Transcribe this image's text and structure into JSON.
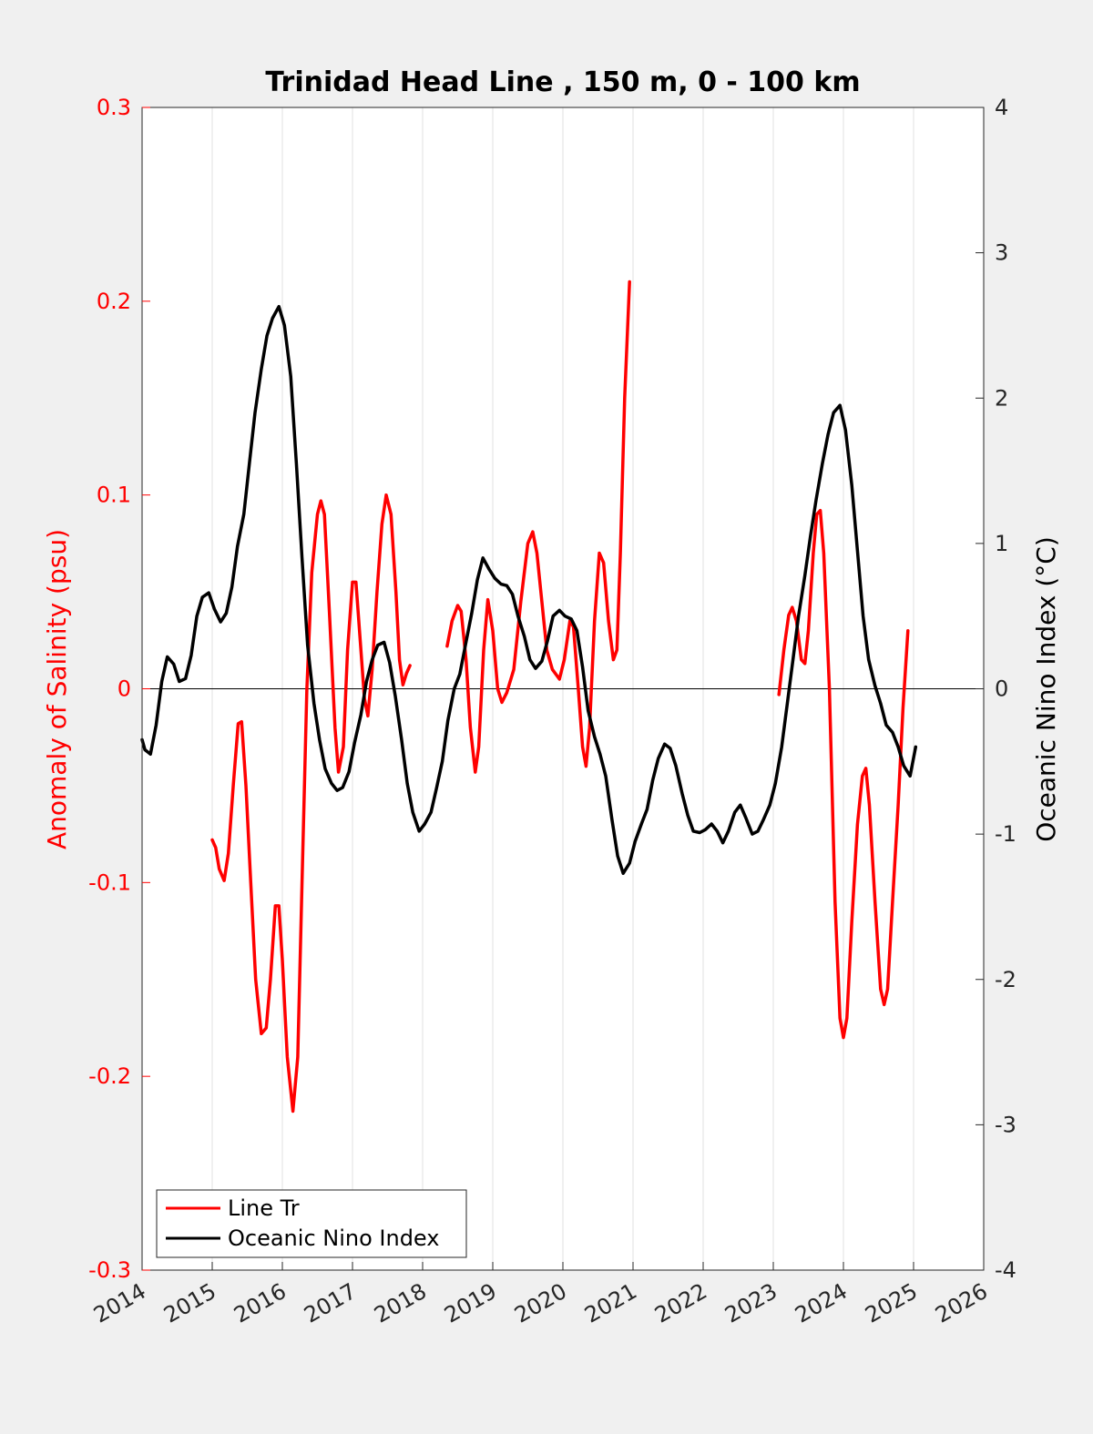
{
  "chart_data": {
    "type": "line",
    "title": "Trinidad Head Line , 150 m, 0 - 100 km",
    "xlabel": "",
    "ylabel_left": "Anomaly of Salinity (psu)",
    "ylabel_right": "Oceanic Nino Index (°C)",
    "xlim": [
      2014,
      2026
    ],
    "ylim_left": [
      -0.3,
      0.3
    ],
    "ylim_right": [
      -4,
      4
    ],
    "x_ticks": [
      "2014",
      "2015",
      "2016",
      "2017",
      "2018",
      "2019",
      "2020",
      "2021",
      "2022",
      "2023",
      "2024",
      "2025",
      "2026"
    ],
    "y_left_ticks": [
      "-0.3",
      "-0.2",
      "-0.1",
      "0",
      "0.1",
      "0.2",
      "0.3"
    ],
    "y_right_ticks": [
      "-4",
      "-3",
      "-2",
      "-1",
      "0",
      "1",
      "2",
      "3",
      "4"
    ],
    "grid": "vertical",
    "legend_position": "bottom-left",
    "zero_line": 0,
    "colors": {
      "left_axis": "#ff0000",
      "series_1": "#ff0000",
      "series_2": "#000000",
      "background": "#f0f0f0",
      "plot_area": "#ffffff",
      "grid": "#e2e2e2"
    },
    "series": [
      {
        "name": "Line Tr",
        "axis": "left",
        "segments": [
          [
            [
              2015.0,
              -0.078
            ],
            [
              2015.05,
              -0.082
            ],
            [
              2015.1,
              -0.093
            ],
            [
              2015.17,
              -0.099
            ],
            [
              2015.23,
              -0.085
            ],
            [
              2015.3,
              -0.05
            ],
            [
              2015.37,
              -0.018
            ],
            [
              2015.42,
              -0.017
            ],
            [
              2015.48,
              -0.05
            ],
            [
              2015.55,
              -0.1
            ],
            [
              2015.62,
              -0.15
            ],
            [
              2015.7,
              -0.178
            ],
            [
              2015.77,
              -0.175
            ],
            [
              2015.83,
              -0.15
            ],
            [
              2015.9,
              -0.112
            ],
            [
              2015.95,
              -0.112
            ],
            [
              2016.0,
              -0.14
            ],
            [
              2016.07,
              -0.19
            ],
            [
              2016.15,
              -0.218
            ],
            [
              2016.22,
              -0.19
            ],
            [
              2016.28,
              -0.1
            ],
            [
              2016.35,
              0.0
            ],
            [
              2016.42,
              0.06
            ],
            [
              2016.5,
              0.09
            ],
            [
              2016.55,
              0.097
            ],
            [
              2016.6,
              0.09
            ],
            [
              2016.67,
              0.04
            ],
            [
              2016.75,
              -0.02
            ],
            [
              2016.8,
              -0.043
            ],
            [
              2016.87,
              -0.03
            ],
            [
              2016.93,
              0.02
            ],
            [
              2017.0,
              0.055
            ],
            [
              2017.05,
              0.055
            ],
            [
              2017.1,
              0.03
            ],
            [
              2017.17,
              -0.005
            ],
            [
              2017.22,
              -0.014
            ],
            [
              2017.28,
              0.01
            ],
            [
              2017.35,
              0.05
            ],
            [
              2017.42,
              0.085
            ],
            [
              2017.48,
              0.1
            ],
            [
              2017.55,
              0.09
            ],
            [
              2017.62,
              0.05
            ],
            [
              2017.67,
              0.015
            ],
            [
              2017.72,
              0.002
            ],
            [
              2017.77,
              0.008
            ],
            [
              2017.82,
              0.012
            ]
          ],
          [
            [
              2018.35,
              0.022
            ],
            [
              2018.42,
              0.035
            ],
            [
              2018.5,
              0.043
            ],
            [
              2018.55,
              0.04
            ],
            [
              2018.62,
              0.015
            ],
            [
              2018.68,
              -0.02
            ],
            [
              2018.75,
              -0.043
            ],
            [
              2018.8,
              -0.03
            ],
            [
              2018.87,
              0.02
            ],
            [
              2018.93,
              0.046
            ],
            [
              2019.0,
              0.03
            ],
            [
              2019.07,
              0.0
            ],
            [
              2019.13,
              -0.007
            ],
            [
              2019.2,
              -0.002
            ],
            [
              2019.3,
              0.01
            ],
            [
              2019.4,
              0.045
            ],
            [
              2019.5,
              0.075
            ],
            [
              2019.57,
              0.081
            ],
            [
              2019.63,
              0.07
            ],
            [
              2019.7,
              0.045
            ],
            [
              2019.77,
              0.02
            ],
            [
              2019.85,
              0.01
            ],
            [
              2019.95,
              0.005
            ],
            [
              2020.02,
              0.015
            ],
            [
              2020.1,
              0.035
            ],
            [
              2020.15,
              0.032
            ],
            [
              2020.22,
              0.0
            ],
            [
              2020.28,
              -0.03
            ],
            [
              2020.33,
              -0.04
            ],
            [
              2020.38,
              -0.02
            ],
            [
              2020.45,
              0.035
            ],
            [
              2020.52,
              0.07
            ],
            [
              2020.58,
              0.065
            ],
            [
              2020.65,
              0.035
            ],
            [
              2020.72,
              0.015
            ],
            [
              2020.77,
              0.02
            ],
            [
              2020.82,
              0.07
            ],
            [
              2020.88,
              0.15
            ],
            [
              2020.95,
              0.21
            ]
          ],
          [
            [
              2023.08,
              -0.003
            ],
            [
              2023.15,
              0.02
            ],
            [
              2023.22,
              0.038
            ],
            [
              2023.27,
              0.042
            ],
            [
              2023.33,
              0.035
            ],
            [
              2023.4,
              0.015
            ],
            [
              2023.45,
              0.013
            ],
            [
              2023.5,
              0.03
            ],
            [
              2023.57,
              0.07
            ],
            [
              2023.62,
              0.09
            ],
            [
              2023.67,
              0.092
            ],
            [
              2023.72,
              0.07
            ],
            [
              2023.8,
              0.0
            ],
            [
              2023.88,
              -0.11
            ],
            [
              2023.95,
              -0.17
            ],
            [
              2024.0,
              -0.18
            ],
            [
              2024.05,
              -0.17
            ],
            [
              2024.12,
              -0.12
            ],
            [
              2024.2,
              -0.07
            ],
            [
              2024.27,
              -0.045
            ],
            [
              2024.32,
              -0.041
            ],
            [
              2024.37,
              -0.06
            ],
            [
              2024.45,
              -0.11
            ],
            [
              2024.53,
              -0.155
            ],
            [
              2024.58,
              -0.163
            ],
            [
              2024.63,
              -0.155
            ],
            [
              2024.7,
              -0.11
            ],
            [
              2024.78,
              -0.06
            ],
            [
              2024.85,
              -0.01
            ],
            [
              2024.92,
              0.03
            ]
          ]
        ]
      },
      {
        "name": "Oceanic Nino Index",
        "axis": "right",
        "points": [
          [
            2014.0,
            -0.35
          ],
          [
            2014.04,
            -0.42
          ],
          [
            2014.12,
            -0.45
          ],
          [
            2014.2,
            -0.25
          ],
          [
            2014.28,
            0.05
          ],
          [
            2014.36,
            0.22
          ],
          [
            2014.45,
            0.17
          ],
          [
            2014.53,
            0.05
          ],
          [
            2014.62,
            0.07
          ],
          [
            2014.7,
            0.23
          ],
          [
            2014.78,
            0.5
          ],
          [
            2014.86,
            0.63
          ],
          [
            2014.95,
            0.66
          ],
          [
            2015.03,
            0.55
          ],
          [
            2015.12,
            0.46
          ],
          [
            2015.2,
            0.52
          ],
          [
            2015.28,
            0.7
          ],
          [
            2015.36,
            0.98
          ],
          [
            2015.45,
            1.2
          ],
          [
            2015.53,
            1.55
          ],
          [
            2015.61,
            1.9
          ],
          [
            2015.7,
            2.2
          ],
          [
            2015.78,
            2.43
          ],
          [
            2015.86,
            2.55
          ],
          [
            2015.95,
            2.63
          ],
          [
            2016.03,
            2.5
          ],
          [
            2016.12,
            2.15
          ],
          [
            2016.2,
            1.55
          ],
          [
            2016.28,
            0.9
          ],
          [
            2016.36,
            0.3
          ],
          [
            2016.45,
            -0.1
          ],
          [
            2016.53,
            -0.35
          ],
          [
            2016.61,
            -0.55
          ],
          [
            2016.7,
            -0.65
          ],
          [
            2016.78,
            -0.7
          ],
          [
            2016.86,
            -0.68
          ],
          [
            2016.95,
            -0.57
          ],
          [
            2017.03,
            -0.37
          ],
          [
            2017.12,
            -0.18
          ],
          [
            2017.2,
            0.05
          ],
          [
            2017.28,
            0.2
          ],
          [
            2017.36,
            0.3
          ],
          [
            2017.45,
            0.32
          ],
          [
            2017.53,
            0.18
          ],
          [
            2017.61,
            -0.05
          ],
          [
            2017.7,
            -0.35
          ],
          [
            2017.78,
            -0.65
          ],
          [
            2017.86,
            -0.85
          ],
          [
            2017.95,
            -0.98
          ],
          [
            2018.03,
            -0.93
          ],
          [
            2018.12,
            -0.85
          ],
          [
            2018.2,
            -0.68
          ],
          [
            2018.28,
            -0.5
          ],
          [
            2018.36,
            -0.22
          ],
          [
            2018.45,
            0.0
          ],
          [
            2018.53,
            0.1
          ],
          [
            2018.61,
            0.3
          ],
          [
            2018.7,
            0.52
          ],
          [
            2018.78,
            0.75
          ],
          [
            2018.86,
            0.9
          ],
          [
            2018.95,
            0.82
          ],
          [
            2019.03,
            0.76
          ],
          [
            2019.12,
            0.72
          ],
          [
            2019.2,
            0.71
          ],
          [
            2019.28,
            0.65
          ],
          [
            2019.36,
            0.5
          ],
          [
            2019.45,
            0.36
          ],
          [
            2019.53,
            0.2
          ],
          [
            2019.61,
            0.14
          ],
          [
            2019.7,
            0.19
          ],
          [
            2019.78,
            0.33
          ],
          [
            2019.86,
            0.5
          ],
          [
            2019.95,
            0.54
          ],
          [
            2020.03,
            0.5
          ],
          [
            2020.12,
            0.48
          ],
          [
            2020.2,
            0.4
          ],
          [
            2020.28,
            0.15
          ],
          [
            2020.36,
            -0.15
          ],
          [
            2020.45,
            -0.33
          ],
          [
            2020.53,
            -0.45
          ],
          [
            2020.61,
            -0.6
          ],
          [
            2020.7,
            -0.9
          ],
          [
            2020.78,
            -1.15
          ],
          [
            2020.86,
            -1.27
          ],
          [
            2020.95,
            -1.2
          ],
          [
            2021.03,
            -1.05
          ],
          [
            2021.12,
            -0.93
          ],
          [
            2021.2,
            -0.83
          ],
          [
            2021.28,
            -0.63
          ],
          [
            2021.36,
            -0.48
          ],
          [
            2021.45,
            -0.38
          ],
          [
            2021.53,
            -0.41
          ],
          [
            2021.61,
            -0.53
          ],
          [
            2021.7,
            -0.72
          ],
          [
            2021.78,
            -0.87
          ],
          [
            2021.86,
            -0.98
          ],
          [
            2021.95,
            -0.99
          ],
          [
            2022.03,
            -0.97
          ],
          [
            2022.12,
            -0.93
          ],
          [
            2022.2,
            -0.98
          ],
          [
            2022.28,
            -1.06
          ],
          [
            2022.36,
            -0.98
          ],
          [
            2022.45,
            -0.85
          ],
          [
            2022.53,
            -0.8
          ],
          [
            2022.61,
            -0.89
          ],
          [
            2022.7,
            -1.0
          ],
          [
            2022.78,
            -0.98
          ],
          [
            2022.86,
            -0.9
          ],
          [
            2022.95,
            -0.8
          ],
          [
            2023.03,
            -0.65
          ],
          [
            2023.12,
            -0.4
          ],
          [
            2023.2,
            -0.1
          ],
          [
            2023.28,
            0.2
          ],
          [
            2023.36,
            0.5
          ],
          [
            2023.45,
            0.78
          ],
          [
            2023.53,
            1.05
          ],
          [
            2023.61,
            1.3
          ],
          [
            2023.7,
            1.55
          ],
          [
            2023.78,
            1.75
          ],
          [
            2023.86,
            1.9
          ],
          [
            2023.95,
            1.95
          ],
          [
            2024.03,
            1.78
          ],
          [
            2024.12,
            1.4
          ],
          [
            2024.2,
            0.95
          ],
          [
            2024.28,
            0.5
          ],
          [
            2024.36,
            0.2
          ],
          [
            2024.45,
            0.02
          ],
          [
            2024.53,
            -0.1
          ],
          [
            2024.61,
            -0.25
          ],
          [
            2024.7,
            -0.3
          ],
          [
            2024.78,
            -0.4
          ],
          [
            2024.86,
            -0.53
          ],
          [
            2024.95,
            -0.6
          ],
          [
            2025.03,
            -0.4
          ]
        ]
      }
    ]
  }
}
